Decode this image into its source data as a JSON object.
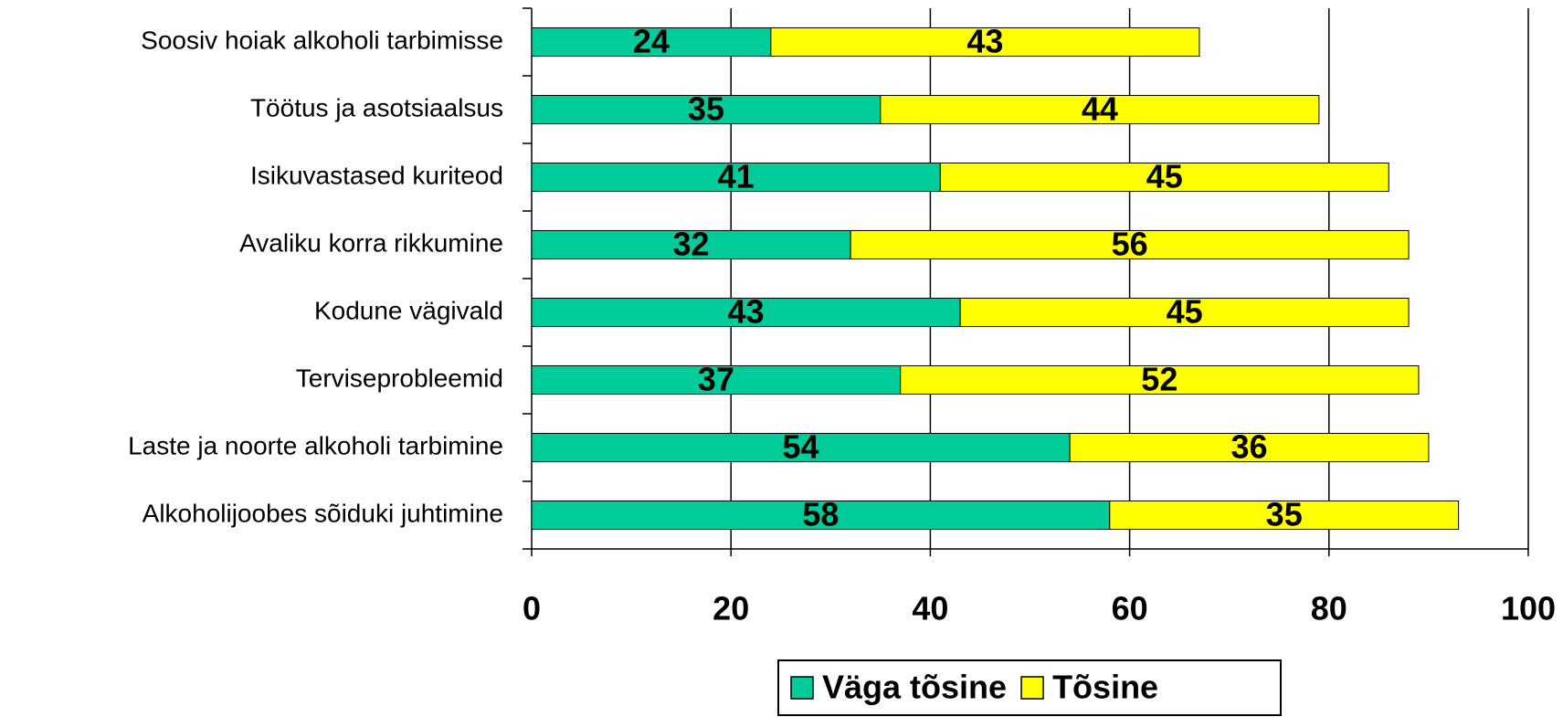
{
  "chart_data": {
    "type": "stacked-barh",
    "categories": [
      "Soosiv hoiak alkoholi tarbimisse",
      "Töötus ja asotsiaalsus",
      "Isikuvastased kuriteod",
      "Avaliku korra rikkumine",
      "Kodune  vägivald",
      "Terviseprobleemid",
      "Laste ja noorte alkoholi tarbimine",
      "Alkoholijoobes sõiduki juhtimine"
    ],
    "series": [
      {
        "name": "Väga tõsine",
        "color": "#00cc99",
        "values": [
          24,
          35,
          41,
          32,
          43,
          37,
          54,
          58
        ]
      },
      {
        "name": "Tõsine",
        "color": "#ffff00",
        "values": [
          43,
          44,
          45,
          56,
          45,
          52,
          36,
          35
        ]
      }
    ],
    "xlim": [
      0,
      100
    ],
    "xticks": [
      0,
      20,
      40,
      60,
      80,
      100
    ],
    "grid": true,
    "legend": "bottom"
  }
}
